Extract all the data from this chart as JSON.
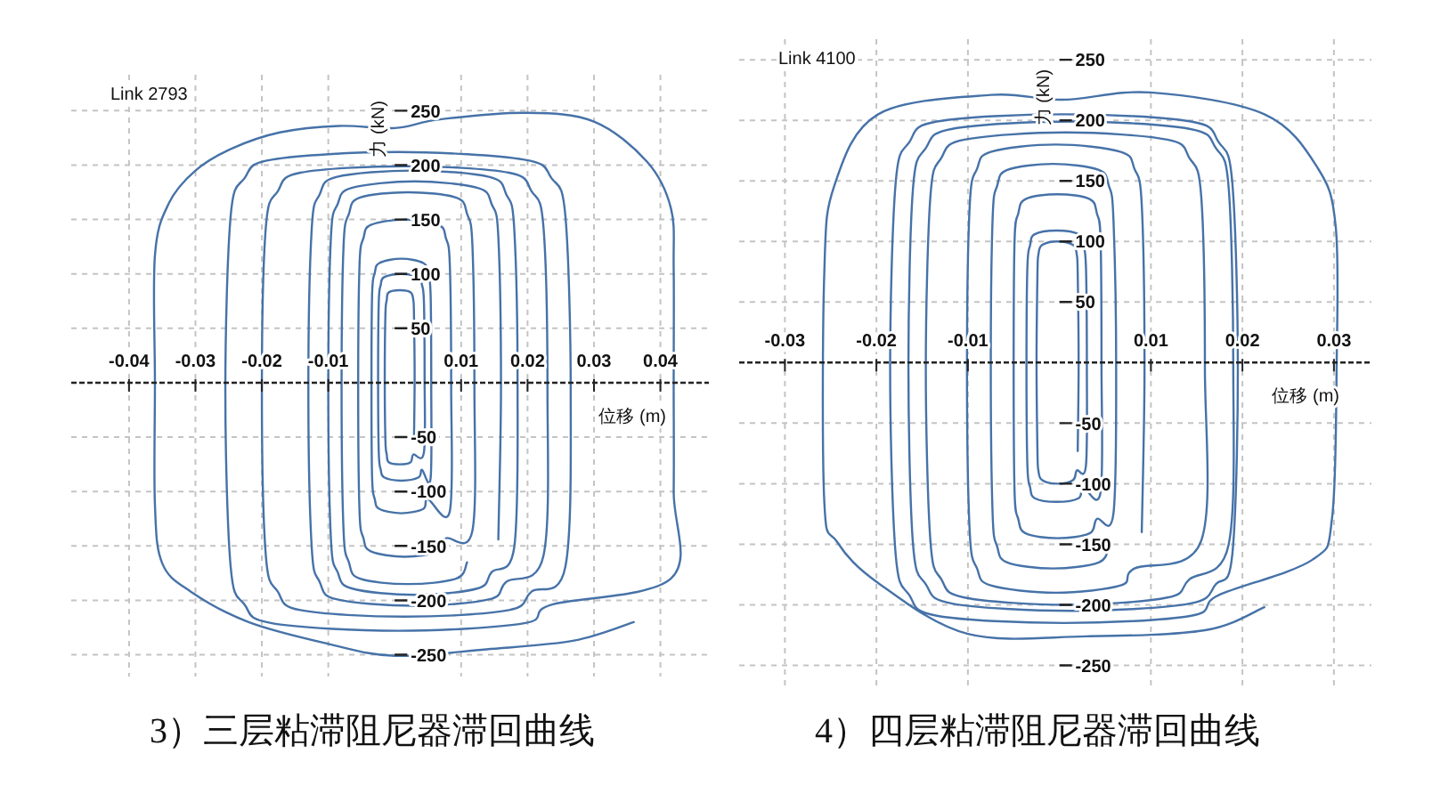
{
  "chart_data": [
    {
      "type": "line",
      "title": "3）三层粘滞阻尼器滞回曲线",
      "xlabel": "位移 (m)",
      "ylabel": "力 (kN)",
      "annotations": [
        "Link 2793"
      ],
      "grid": true,
      "xlim": [
        -0.0487,
        0.0473
      ],
      "ylim": [
        -270,
        283
      ],
      "xticks": [
        -0.04,
        -0.03,
        -0.02,
        -0.01,
        0.01,
        0.02,
        0.03,
        0.04
      ],
      "yticks": [
        250,
        200,
        150,
        100,
        50,
        -50,
        -100,
        -150,
        -200,
        -250
      ],
      "ref_lines": [
        {
          "axis": "y",
          "value": 0,
          "color": "#222222",
          "line_style": "dashed"
        }
      ],
      "series": [
        {
          "color": "#4672a8",
          "x": [
            0.0029,
            0.003,
            0.0029,
            0.0028,
            0.0024,
            0.0008,
            -0.0009,
            -0.0012,
            -0.0014,
            -0.0015,
            -0.0014,
            -0.0012,
            -0.0009,
            0.0008,
            0.0024,
            0.0028,
            0.0044,
            0.0045,
            0.0044,
            0.0041,
            0.0036,
            0.001,
            -0.0016,
            -0.0021,
            -0.0024,
            -0.0025,
            -0.0024,
            -0.0021,
            -0.0016,
            0.001,
            0.0036,
            0.0041,
            0.0054,
            0.0055,
            0.0054,
            0.005,
            0.0043,
            0.001,
            -0.0023,
            -0.003,
            -0.0034,
            -0.0035,
            -0.0034,
            -0.003,
            -0.0023,
            0.001,
            0.0043,
            0.005,
            0.0083,
            0.0085,
            0.0083,
            0.0077,
            0.0066,
            0.0015,
            -0.0036,
            -0.0047,
            -0.0053,
            -0.0055,
            -0.0053,
            -0.0047,
            -0.0036,
            0.0015,
            0.0066,
            0.0077,
            0.0117,
            0.012,
            0.0117,
            0.0109,
            0.0093,
            0.002,
            -0.0053,
            -0.0069,
            -0.0077,
            -0.008,
            -0.0077,
            -0.0069,
            -0.0053,
            0.002,
            0.0093,
            0.0109
          ],
          "values": [
            -53,
            5,
            63,
            76,
            83,
            85,
            83,
            76,
            63,
            5,
            -53,
            -66,
            -73,
            -75,
            -73,
            -66,
            -64,
            5,
            74,
            90,
            97,
            100,
            97,
            90,
            74,
            5,
            -64,
            -80,
            -87,
            -90,
            -87,
            -80,
            -88,
            -3,
            82,
            101,
            110,
            114,
            110,
            101,
            82,
            -3,
            -88,
            -107,
            -116,
            -120,
            -116,
            -107,
            -118,
            -5,
            108,
            133,
            145,
            150,
            145,
            133,
            108,
            -5,
            -118,
            -143,
            -155,
            -160,
            -155,
            -143,
            -136,
            -5,
            126,
            155,
            170,
            175,
            170,
            155,
            126,
            -5,
            -136,
            -165,
            -180,
            -185,
            -180,
            -165
          ]
        },
        {
          "color": "#4672a8",
          "x": [
            0.0156,
            0.016,
            0.0156,
            0.0146,
            0.0125,
            0.003,
            -0.0065,
            -0.0086,
            -0.0096,
            -0.01,
            -0.0096,
            -0.0086,
            -0.0065,
            0.003,
            0.0125,
            0.0146,
            0.018,
            0.0185,
            0.018,
            0.0168,
            0.0143,
            0.0028,
            -0.0088,
            -0.0113,
            -0.0125,
            -0.013,
            -0.0125,
            -0.0113,
            -0.0088,
            0.0028,
            0.0143,
            0.0168,
            0.0224,
            0.023,
            0.0224,
            0.0206,
            0.0172,
            0.0015,
            -0.0142,
            -0.0176,
            -0.0194,
            -0.02,
            -0.0194,
            -0.0176,
            -0.0142,
            0.0015,
            0.0172,
            0.0206,
            0.0257,
            0.0265,
            0.0257,
            0.0236,
            0.0195,
            0.0005,
            -0.0185,
            -0.0226,
            -0.0247,
            -0.0255,
            -0.0247,
            -0.0226,
            -0.0185,
            0.0005,
            0.0195,
            0.0236,
            0.0416,
            0.042,
            0.042,
            0.042,
            0.0416,
            0.038,
            0.03,
            0.0197,
            0.0068,
            0,
            -0.0084,
            -0.0173,
            -0.0246,
            -0.03,
            -0.034,
            -0.0361,
            -0.0361,
            -0.0361,
            -0.035,
            -0.0307,
            -0.022,
            -0.01,
            0,
            0.0138,
            0.027,
            0.036
          ],
          "values": [
            -144,
            -5,
            134,
            164,
            179,
            185,
            179,
            164,
            134,
            -5,
            -144,
            -174,
            -189,
            -195,
            -189,
            -174,
            -151,
            -5,
            141,
            173,
            189,
            195,
            189,
            173,
            141,
            -5,
            -151,
            -183,
            -199,
            -205,
            -199,
            -183,
            -159,
            -8,
            143,
            176,
            193,
            199,
            193,
            176,
            143,
            -8,
            -159,
            -192,
            -209,
            -215,
            -209,
            -192,
            -169,
            -8,
            153,
            188,
            205,
            212,
            205,
            188,
            153,
            -8,
            -169,
            -204,
            -221,
            -228,
            -221,
            -204,
            -180,
            -100,
            0,
            105,
            160,
            203,
            240,
            248,
            242,
            234,
            236,
            230,
            215,
            195,
            165,
            117,
            0,
            -112,
            -166,
            -192,
            -220,
            -240,
            -251,
            -245,
            -237,
            -220
          ]
        }
      ]
    },
    {
      "type": "line",
      "title": "4）四层粘滞阻尼器滞回曲线",
      "xlabel": "位移 (m)",
      "ylabel": "力 (kN)",
      "annotations": [
        "Link 4100"
      ],
      "grid": true,
      "xlim": [
        -0.035,
        0.0341
      ],
      "ylim": [
        -268,
        267
      ],
      "xticks": [
        -0.03,
        -0.02,
        -0.01,
        0.01,
        0.02,
        0.03
      ],
      "yticks": [
        250,
        200,
        150,
        100,
        50,
        -50,
        -100,
        -150,
        -200,
        -250
      ],
      "ref_lines": [
        {
          "axis": "y",
          "value": 0,
          "color": "#222222",
          "line_style": "dashed"
        }
      ],
      "series": [
        {
          "color": "#4672a8",
          "x": [
            0.002,
            0.0021,
            0.002,
            0.0019,
            0.0015,
            -0.0002,
            -0.0019,
            -0.0023,
            -0.0024,
            -0.0025,
            -0.0024,
            -0.0023,
            -0.0019,
            -0.0002,
            0.0015,
            0.0019,
            0.0029,
            0.003,
            0.0029,
            0.0026,
            0.0021,
            -0.0003,
            -0.0027,
            -0.0032,
            -0.0035,
            -0.0036,
            -0.0035,
            -0.0032,
            -0.0027,
            -0.0003,
            0.0021,
            0.0026,
            0.0045,
            0.0046,
            0.0045,
            0.0041,
            0.0033,
            -0.0002,
            -0.0037,
            -0.0045,
            -0.0049,
            -0.005,
            -0.0049,
            -0.0045,
            -0.0037,
            -0.0002,
            0.0033,
            0.0041,
            0.0059,
            0.0062,
            0.0059,
            0.0054,
            0.0043,
            -0.0007,
            -0.0057,
            -0.0068,
            -0.0073,
            -0.0075,
            -0.0073,
            -0.0068,
            -0.0057,
            -0.0007,
            0.0043,
            0.0054
          ],
          "values": [
            -73,
            0,
            73,
            89,
            97,
            100,
            97,
            89,
            73,
            0,
            -73,
            -89,
            -97,
            -100,
            -97,
            -89,
            -85,
            -3,
            79,
            97,
            106,
            109,
            106,
            97,
            79,
            -3,
            -85,
            -103,
            -112,
            -115,
            -112,
            -103,
            -107,
            -3,
            101,
            123,
            135,
            139,
            135,
            123,
            101,
            -3,
            -107,
            -129,
            -141,
            -145,
            -141,
            -129,
            -125,
            -3,
            119,
            146,
            159,
            164,
            159,
            146,
            119,
            -3,
            -125,
            -152,
            -165,
            -170,
            -165,
            -152
          ]
        },
        {
          "color": "#4672a8",
          "x": [
            0.009,
            0.0093,
            0.009,
            0.0082,
            0.0067,
            -0.0004,
            -0.0075,
            -0.009,
            -0.0098,
            -0.0101,
            -0.0098,
            -0.009,
            -0.0075,
            -0.0004,
            0.0067,
            0.0082,
            0.0155,
            0.0159,
            0.0155,
            0.0142,
            0.0118,
            0.0007,
            -0.0104,
            -0.0129,
            -0.0141,
            -0.0146,
            -0.0141,
            -0.0129,
            -0.0104,
            0.0007,
            0.0118,
            0.0142,
            0.0185,
            0.019,
            0.0185,
            0.0171,
            0.0142,
            0.0013,
            -0.0117,
            -0.0146,
            -0.016,
            -0.0165,
            -0.016,
            -0.0146,
            -0.0117,
            0.0013,
            0.0142,
            0.0171,
            0.0189,
            0.0195,
            0.0189,
            0.0174,
            0.0144,
            0.0005,
            -0.0134,
            -0.0164,
            -0.0179,
            -0.0185,
            -0.0179,
            -0.0164,
            -0.0134,
            0.0005,
            0.0144,
            0.0174,
            0.0276,
            0.0298,
            0.0303,
            0.0302,
            0.0282,
            0.0224,
            0.01,
            0.0003,
            -0.0075,
            -0.0198,
            -0.0246,
            -0.0257,
            -0.0257,
            -0.0243,
            -0.0198,
            -0.01,
            0.0029,
            0.0159,
            0.0224
          ],
          "values": [
            -140,
            -5,
            130,
            160,
            174,
            180,
            174,
            160,
            130,
            -5,
            -140,
            -170,
            -184,
            -190,
            -184,
            -170,
            -147,
            -5,
            137,
            169,
            184,
            190,
            184,
            169,
            137,
            -5,
            -147,
            -179,
            -194,
            -200,
            -194,
            -179,
            -150,
            -3,
            144,
            177,
            193,
            199,
            193,
            177,
            144,
            -3,
            -150,
            -183,
            -199,
            -205,
            -199,
            -183,
            -158,
            -5,
            148,
            182,
            199,
            205,
            199,
            182,
            148,
            -5,
            -158,
            -192,
            -209,
            -215,
            -209,
            -192,
            -163,
            -128,
            0,
            112,
            161,
            205,
            223,
            217,
            221,
            205,
            146,
            73,
            -114,
            -148,
            -182,
            -224,
            -226,
            -221,
            -202
          ]
        }
      ]
    }
  ]
}
